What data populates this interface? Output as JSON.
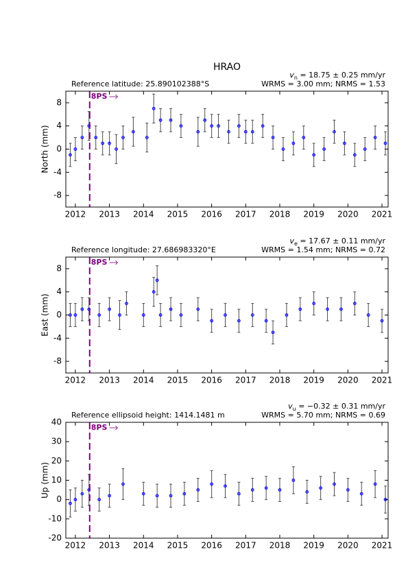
{
  "title": "HRAO",
  "chart_data": [
    {
      "type": "scatter",
      "ylabel": "North (mm)",
      "reference": "Reference latitude: 25.890102388°S",
      "rate_symbol": "v",
      "rate_subscript": "n",
      "rate_text": " = 18.75 ± 0.25 mm/yr",
      "fit": "WRMS = 3.00 mm; NRMS = 1.53",
      "event": {
        "x": 2012.42,
        "label": "8PS"
      },
      "x": [
        2011.85,
        2012.0,
        2012.2,
        2012.4,
        2012.6,
        2012.8,
        2013.0,
        2013.2,
        2013.4,
        2013.7,
        2014.1,
        2014.3,
        2014.5,
        2014.8,
        2015.1,
        2015.6,
        2015.8,
        2016.0,
        2016.2,
        2016.5,
        2016.8,
        2017.0,
        2017.2,
        2017.5,
        2017.8,
        2018.1,
        2018.4,
        2018.7,
        2019.0,
        2019.3,
        2019.6,
        2019.9,
        2020.2,
        2020.5,
        2020.8,
        2021.1
      ],
      "values": [
        -1,
        0,
        2,
        4,
        2,
        1,
        1,
        0,
        2,
        3,
        2,
        7,
        5,
        5,
        4,
        3,
        5,
        4,
        4,
        3,
        4,
        3,
        3,
        4,
        2,
        0,
        1,
        2,
        -1,
        0,
        3,
        1,
        -1,
        0,
        2,
        1
      ],
      "errors": [
        2,
        2,
        2,
        2.5,
        2,
        2,
        2,
        2.5,
        2,
        2.5,
        2.5,
        2.5,
        2,
        2,
        2,
        2.5,
        2,
        2,
        2,
        2,
        2,
        2,
        2,
        2,
        2,
        2,
        2,
        2,
        2,
        2,
        2,
        2,
        2,
        2,
        2,
        2
      ],
      "xlim": [
        2011.72,
        2021.18
      ],
      "xticks": [
        2012,
        2013,
        2014,
        2015,
        2016,
        2017,
        2018,
        2019,
        2020,
        2021
      ],
      "ylim": [
        -10,
        10
      ],
      "yticks": [
        -8,
        -4,
        0,
        4,
        8
      ],
      "color": "#0000ff",
      "error_color": "#4a4a4a",
      "event_color": "#800080"
    },
    {
      "type": "scatter",
      "ylabel": "East (mm)",
      "reference": "Reference longitude: 27.686983320°E",
      "rate_symbol": "v",
      "rate_subscript": "e",
      "rate_text": " = 17.67 ± 0.11 mm/yr",
      "fit": "WRMS = 1.54 mm; NRMS = 0.72",
      "event": {
        "x": 2012.42,
        "label": "8PS"
      },
      "x": [
        2011.85,
        2012.0,
        2012.2,
        2012.4,
        2012.7,
        2013.0,
        2013.3,
        2013.5,
        2014.0,
        2014.3,
        2014.4,
        2014.5,
        2014.8,
        2015.1,
        2015.6,
        2016.0,
        2016.4,
        2016.8,
        2017.2,
        2017.6,
        2017.8,
        2018.2,
        2018.6,
        2019.0,
        2019.4,
        2019.8,
        2020.2,
        2020.6,
        2021.0
      ],
      "values": [
        0,
        0,
        1,
        1,
        0,
        1,
        0,
        2,
        0,
        4,
        6,
        0,
        1,
        0,
        1,
        -1,
        0,
        -1,
        0,
        -1,
        -3,
        0,
        1,
        2,
        1,
        1,
        2,
        0,
        -1
      ],
      "errors": [
        2,
        2,
        2,
        2,
        2,
        2,
        2.5,
        2,
        2,
        2.5,
        2.5,
        2,
        2,
        2,
        2,
        2,
        2,
        2,
        2,
        2,
        2,
        2,
        2,
        2,
        2,
        2,
        2,
        2,
        2
      ],
      "xlim": [
        2011.72,
        2021.18
      ],
      "xticks": [
        2012,
        2013,
        2014,
        2015,
        2016,
        2017,
        2018,
        2019,
        2020,
        2021
      ],
      "ylim": [
        -10,
        10
      ],
      "yticks": [
        -8,
        -4,
        0,
        4,
        8
      ],
      "color": "#0000ff",
      "error_color": "#4a4a4a",
      "event_color": "#800080"
    },
    {
      "type": "scatter",
      "ylabel": "Up (mm)",
      "reference": "Reference ellipsoid height: 1414.1481 m",
      "rate_symbol": "v",
      "rate_subscript": "u",
      "rate_text": " = −0.32 ± 0.31 mm/yr",
      "fit": "WRMS = 5.70 mm; NRMS = 0.69",
      "event": {
        "x": 2012.42,
        "label": "8PS"
      },
      "x": [
        2011.85,
        2012.0,
        2012.2,
        2012.4,
        2012.7,
        2013.0,
        2013.4,
        2014.0,
        2014.4,
        2014.8,
        2015.2,
        2015.6,
        2016.0,
        2016.4,
        2016.8,
        2017.2,
        2017.6,
        2018.0,
        2018.4,
        2018.8,
        2019.2,
        2019.6,
        2020.0,
        2020.4,
        2020.8,
        2021.1
      ],
      "values": [
        -2,
        0,
        3,
        5,
        0,
        2,
        8,
        3,
        2,
        2,
        3,
        5,
        8,
        7,
        3,
        5,
        6,
        5,
        10,
        4,
        6,
        8,
        5,
        3,
        8,
        0
      ],
      "errors": [
        7,
        6,
        7,
        8,
        6,
        6,
        8,
        6,
        6,
        6,
        6,
        6,
        7,
        6,
        6,
        6,
        6,
        6,
        7,
        6,
        6,
        6,
        6,
        6,
        7,
        7
      ],
      "xlim": [
        2011.72,
        2021.18
      ],
      "xticks": [
        2012,
        2013,
        2014,
        2015,
        2016,
        2017,
        2018,
        2019,
        2020,
        2021
      ],
      "ylim": [
        -20,
        40
      ],
      "yticks": [
        -20,
        -10,
        0,
        10,
        20,
        30,
        40
      ],
      "color": "#0000ff",
      "error_color": "#4a4a4a",
      "event_color": "#800080"
    }
  ]
}
